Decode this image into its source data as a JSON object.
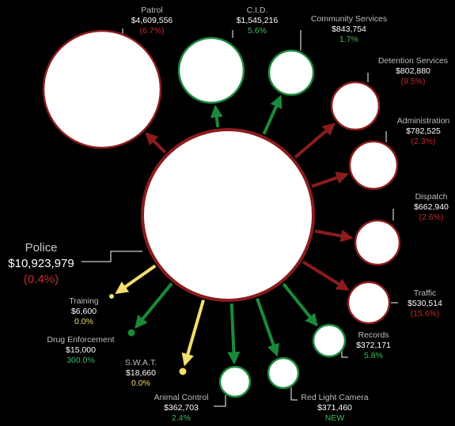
{
  "center": {
    "name": "Police",
    "amount": "$10,923,979",
    "change": "(0.4%)"
  },
  "colors": {
    "red": "#8b1c1c",
    "green": "#1a8a3a",
    "yellow": "#f2de6b",
    "bg": "#000000",
    "bubble": "#ffffff"
  },
  "nodes": [
    {
      "id": "patrol",
      "name": "Patrol",
      "amount": "$4,609,556",
      "change": "(6.7%)",
      "status": "red"
    },
    {
      "id": "cid",
      "name": "C.I.D.",
      "amount": "$1,545,216",
      "change": "5.6%",
      "status": "green"
    },
    {
      "id": "community-services",
      "name": "Community Services",
      "amount": "$843,754",
      "change": "1.7%",
      "status": "green"
    },
    {
      "id": "detention-services",
      "name": "Detention Services",
      "amount": "$802,880",
      "change": "(9.5%)",
      "status": "red"
    },
    {
      "id": "administration",
      "name": "Administration",
      "amount": "$782,525",
      "change": "(2.3%)",
      "status": "red"
    },
    {
      "id": "dispatch",
      "name": "Dispatch",
      "amount": "$662,940",
      "change": "(2.6%)",
      "status": "red"
    },
    {
      "id": "traffic",
      "name": "Traffic",
      "amount": "$530,514",
      "change": "(15.6%)",
      "status": "red"
    },
    {
      "id": "records",
      "name": "Records",
      "amount": "$372,171",
      "change": "5.8%",
      "status": "green"
    },
    {
      "id": "red-light-camera",
      "name": "Red Light Camera",
      "amount": "$371,460",
      "change": "NEW",
      "status": "green"
    },
    {
      "id": "animal-control",
      "name": "Animal Control",
      "amount": "$362,703",
      "change": "2.4%",
      "status": "green"
    },
    {
      "id": "swat",
      "name": "S.W.A.T.",
      "amount": "$18,660",
      "change": "0.0%",
      "status": "yellow"
    },
    {
      "id": "drug-enforcement",
      "name": "Drug Enforcement",
      "amount": "$15,000",
      "change": "300.0%",
      "status": "green"
    },
    {
      "id": "training",
      "name": "Training",
      "amount": "$6,600",
      "change": "0.0%",
      "status": "yellow"
    }
  ]
}
